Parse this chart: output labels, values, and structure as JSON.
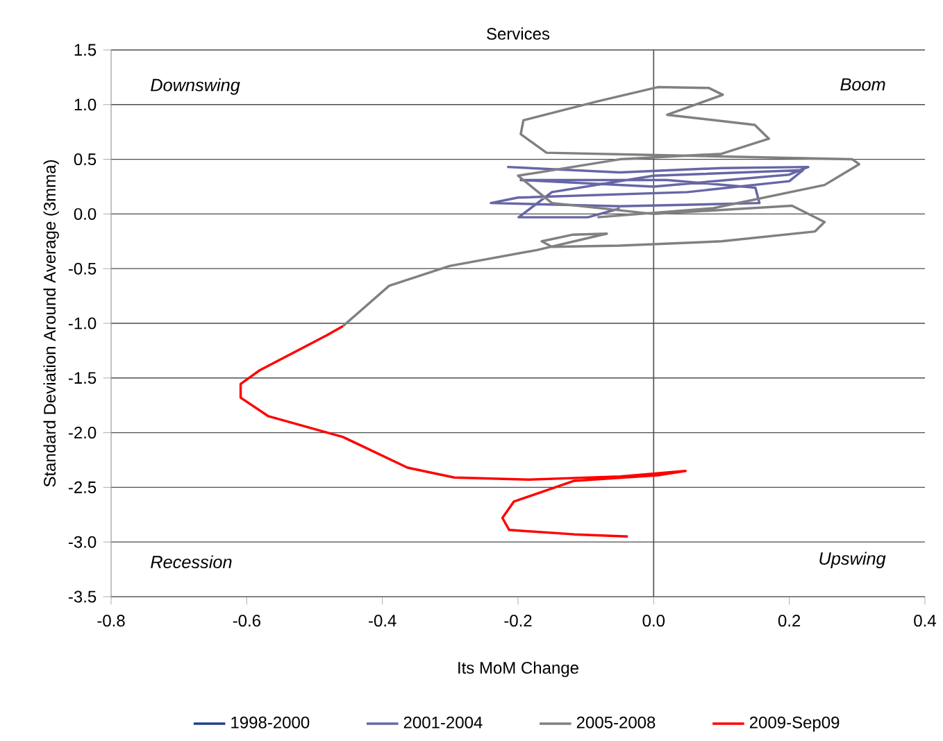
{
  "chart_data": {
    "type": "line",
    "title": "Services",
    "xlabel": "Its MoM Change",
    "ylabel": "Standard Deviation Around Average (3mma)",
    "xlim": [
      -0.8,
      0.4
    ],
    "xticks": [
      {
        "value": -0.8,
        "label": "-0.8"
      },
      {
        "value": -0.6,
        "label": "-0.6"
      },
      {
        "value": -0.4,
        "label": "-0.4"
      },
      {
        "value": -0.2,
        "label": "-0.2"
      },
      {
        "value": 0,
        "label": "0.0"
      },
      {
        "value": 0.2,
        "label": "0.2"
      },
      {
        "value": 0.4,
        "label": "0.4"
      }
    ],
    "ylim": [
      -3.5,
      1.5
    ],
    "yticks": [
      {
        "value": -3.5,
        "label": "-3.5"
      },
      {
        "value": -3,
        "label": "-3.0"
      },
      {
        "value": -2.5,
        "label": "-2.5"
      },
      {
        "value": -2,
        "label": "-2.0"
      },
      {
        "value": -1.5,
        "label": "-1.5"
      },
      {
        "value": -1,
        "label": "-1.0"
      },
      {
        "value": -0.5,
        "label": "-0.5"
      },
      {
        "value": 0,
        "label": "0.0"
      },
      {
        "value": 0.5,
        "label": "0.5"
      },
      {
        "value": 1,
        "label": "1.0"
      },
      {
        "value": 1.5,
        "label": "1.5"
      }
    ],
    "grid": "y",
    "legend": "bottom",
    "ref_lines": [
      {
        "axis": "x",
        "value": 0
      }
    ],
    "marker": "none",
    "annotations": [
      "Downswing",
      "Boom",
      "Recession",
      "Upswing"
    ],
    "series": [
      {
        "name": "1998-2000",
        "color": "#1f3f8f",
        "x": [
          null
        ],
        "values": [
          null
        ]
      },
      {
        "name": "2001-2004",
        "color": "#6666a6",
        "x": [
          -0.216,
          -0.05,
          0.1,
          0.228,
          0.2,
          0.0,
          -0.196,
          0.02,
          0.15,
          0.156,
          -0.05,
          -0.24,
          -0.2,
          0.05,
          0.2,
          0.22,
          0.0,
          -0.15,
          -0.199,
          -0.097,
          -0.05
        ],
        "values": [
          0.43,
          0.38,
          0.42,
          0.43,
          0.36,
          0.25,
          0.31,
          0.31,
          0.24,
          0.1,
          0.07,
          0.1,
          0.15,
          0.2,
          0.3,
          0.4,
          0.35,
          0.2,
          -0.03,
          -0.03,
          0.05
        ]
      },
      {
        "name": "2005-2008",
        "color": "#808080",
        "x": [
          -0.083,
          0.088,
          0.252,
          0.303,
          0.293,
          -0.008,
          -0.158,
          -0.196,
          -0.192,
          -0.083,
          0.006,
          0.081,
          0.102,
          0.02,
          0.149,
          0.17,
          0.1,
          -0.05,
          -0.2,
          -0.15,
          0.0,
          0.204,
          0.252,
          0.238,
          0.1,
          -0.05,
          -0.15,
          -0.165,
          -0.12,
          -0.069,
          -0.172,
          -0.301,
          -0.39,
          -0.458
        ],
        "values": [
          -0.03,
          0.053,
          0.265,
          0.455,
          0.5,
          0.54,
          0.56,
          0.73,
          0.857,
          1.03,
          1.16,
          1.153,
          1.09,
          0.907,
          0.815,
          0.688,
          0.55,
          0.5,
          0.35,
          0.1,
          0.0,
          0.075,
          -0.074,
          -0.16,
          -0.25,
          -0.29,
          -0.3,
          -0.25,
          -0.19,
          -0.18,
          -0.33,
          -0.476,
          -0.657,
          -1.025
        ]
      },
      {
        "name": "2009-Sep09",
        "color": "#ff0000",
        "x": [
          -0.458,
          -0.482,
          -0.581,
          -0.609,
          -0.609,
          -0.568,
          -0.458,
          -0.363,
          -0.294,
          -0.185,
          -0.049,
          0.047,
          0.006,
          -0.117,
          -0.206,
          -0.223,
          -0.213,
          -0.117,
          -0.038
        ],
        "values": [
          -1.025,
          -1.11,
          -1.43,
          -1.555,
          -1.68,
          -1.85,
          -2.04,
          -2.32,
          -2.41,
          -2.43,
          -2.4,
          -2.35,
          -2.39,
          -2.44,
          -2.63,
          -2.78,
          -2.89,
          -2.93,
          -2.95
        ]
      }
    ]
  }
}
